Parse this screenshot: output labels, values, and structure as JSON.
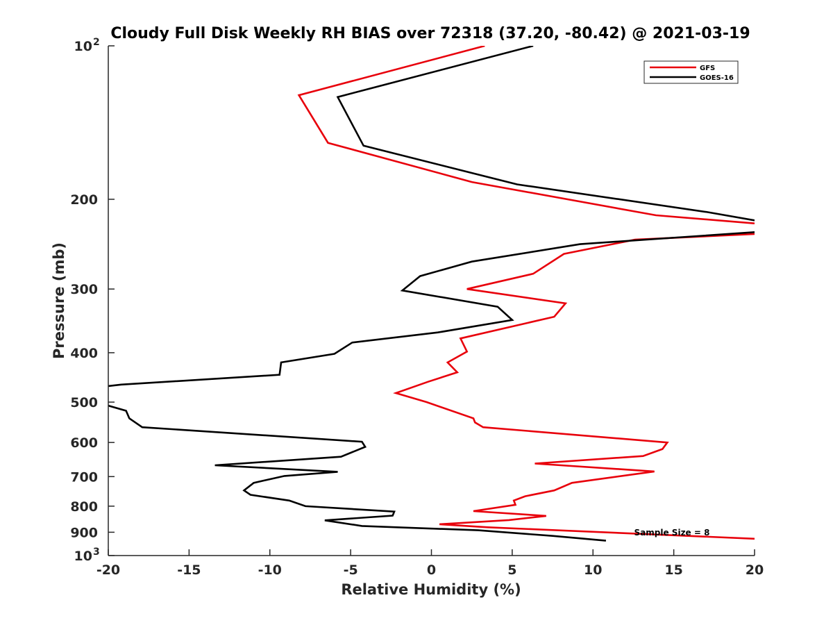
{
  "chart_data": {
    "type": "line",
    "title": "Cloudy Full Disk Weekly RH BIAS over 72318 (37.20, -80.42) @ 2021-03-19",
    "xlabel": "Relative Humidity (%)",
    "ylabel": "Pressure (mb)",
    "xlim": [
      -20,
      20
    ],
    "ylim": [
      100,
      1000
    ],
    "yscale": "log",
    "y_reversed": true,
    "grid": false,
    "legend_position": "top-right",
    "x_ticks": [
      "-20",
      "-15",
      "-10",
      "-5",
      "0",
      "5",
      "10",
      "15",
      "20"
    ],
    "y_ticks": [
      {
        "value": 100,
        "label": "10",
        "sup": "2"
      },
      {
        "value": 200,
        "label": "200",
        "sup": ""
      },
      {
        "value": 300,
        "label": "300",
        "sup": ""
      },
      {
        "value": 400,
        "label": "400",
        "sup": ""
      },
      {
        "value": 500,
        "label": "500",
        "sup": ""
      },
      {
        "value": 600,
        "label": "600",
        "sup": ""
      },
      {
        "value": 700,
        "label": "700",
        "sup": ""
      },
      {
        "value": 800,
        "label": "800",
        "sup": ""
      },
      {
        "value": 900,
        "label": "900",
        "sup": ""
      },
      {
        "value": 1000,
        "label": "10",
        "sup": "3"
      }
    ],
    "series": [
      {
        "name": "GFS",
        "color": "#e8000b",
        "x": [
          3.3,
          -8.2,
          -6.4,
          2.5,
          13.9,
          20,
          null,
          20,
          12.6,
          8.2,
          6.3,
          2.2,
          8.3,
          7.6,
          1.8,
          2.2,
          1.0,
          1.6,
          -0.2,
          -2.2,
          -0.3,
          2.6,
          2.7,
          3.2,
          14.6,
          14.3,
          13.1,
          6.4,
          13.8,
          8.7,
          7.6,
          5.8,
          5.1,
          5.2,
          2.6,
          7.1,
          4.8,
          0.5,
          3.5,
          20
        ],
        "y": [
          100,
          125,
          155,
          185,
          215,
          223,
          null,
          234,
          240,
          256,
          280,
          300,
          320,
          340,
          375,
          398,
          418,
          437,
          456,
          480,
          500,
          538,
          548,
          560,
          600,
          618,
          638,
          660,
          684,
          720,
          745,
          765,
          780,
          795,
          818,
          836,
          852,
          868,
          880,
          927
        ]
      },
      {
        "name": "GOES-16",
        "color": "#000000",
        "x": [
          6.3,
          -5.8,
          -4.2,
          5.3,
          17.1,
          20,
          null,
          20,
          9.2,
          2.5,
          -0.7,
          -1.8,
          4.1,
          5.0,
          0.4,
          -4.9,
          -6.0,
          -9.3,
          -9.4,
          -19.2,
          -20,
          null,
          -20,
          -18.9,
          -18.7,
          -17.9,
          -4.3,
          -4.1,
          -5.6,
          -13.4,
          -5.8,
          -9.1,
          -11.0,
          -11.6,
          -11.2,
          -8.8,
          -7.8,
          -2.3,
          -2.4,
          -6.6,
          -4.3,
          2.9,
          7.5,
          10.8
        ],
        "y": [
          100,
          126,
          157,
          187,
          212,
          220,
          null,
          232,
          245,
          265,
          283,
          302,
          325,
          345,
          365,
          382,
          402,
          418,
          442,
          462,
          465,
          null,
          508,
          520,
          538,
          560,
          598,
          612,
          640,
          665,
          685,
          698,
          720,
          745,
          760,
          780,
          800,
          820,
          835,
          853,
          875,
          892,
          915,
          935
        ]
      }
    ],
    "annotation": "Sample Size = 8"
  }
}
